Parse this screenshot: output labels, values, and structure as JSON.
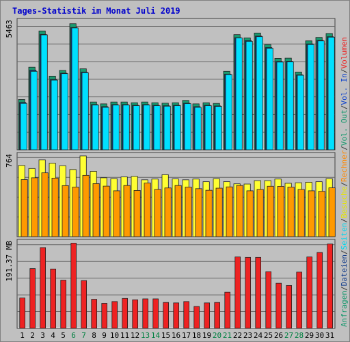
{
  "chart_data": {
    "type": "bar",
    "title": "Tages-Statistik im Monat Juli 2019",
    "days": [
      {
        "label": "1",
        "weekend": false
      },
      {
        "label": "2",
        "weekend": false
      },
      {
        "label": "3",
        "weekend": false
      },
      {
        "label": "4",
        "weekend": false
      },
      {
        "label": "5",
        "weekend": false
      },
      {
        "label": "6",
        "weekend": true
      },
      {
        "label": "7",
        "weekend": true
      },
      {
        "label": "8",
        "weekend": false
      },
      {
        "label": "9",
        "weekend": false
      },
      {
        "label": "10",
        "weekend": false
      },
      {
        "label": "11",
        "weekend": false
      },
      {
        "label": "12",
        "weekend": false
      },
      {
        "label": "13",
        "weekend": true
      },
      {
        "label": "14",
        "weekend": true
      },
      {
        "label": "15",
        "weekend": false
      },
      {
        "label": "16",
        "weekend": false
      },
      {
        "label": "17",
        "weekend": false
      },
      {
        "label": "18",
        "weekend": false
      },
      {
        "label": "19",
        "weekend": false
      },
      {
        "label": "20",
        "weekend": true
      },
      {
        "label": "21",
        "weekend": true
      },
      {
        "label": "22",
        "weekend": false
      },
      {
        "label": "23",
        "weekend": false
      },
      {
        "label": "24",
        "weekend": false
      },
      {
        "label": "25",
        "weekend": false
      },
      {
        "label": "26",
        "weekend": false
      },
      {
        "label": "27",
        "weekend": true
      },
      {
        "label": "28",
        "weekend": true
      },
      {
        "label": "29",
        "weekend": false
      },
      {
        "label": "30",
        "weekend": false
      },
      {
        "label": "31",
        "weekend": false
      }
    ],
    "panels": [
      {
        "id": "requests",
        "max_label": "5463",
        "max": 5463,
        "series": [
          {
            "name": "Anfragen",
            "color": "#1a9a70",
            "values": [
              2180,
              3580,
              5150,
              3190,
              3440,
              5463,
              3510,
              2070,
              1990,
              2070,
              2070,
              2040,
              2070,
              2040,
              2020,
              2040,
              2140,
              1990,
              2040,
              2010,
              3400,
              4990,
              4850,
              5060,
              4560,
              3960,
              3970,
              3370,
              4720,
              4870,
              5040
            ]
          },
          {
            "name": "Dateien",
            "color": "#0f3a8a",
            "values": [
              2050,
              3450,
              5000,
              3050,
              3320,
              5300,
              3370,
              1960,
              1870,
              1960,
              1960,
              1930,
              1960,
              1930,
              1910,
              1930,
              2020,
              1870,
              1930,
              1900,
              3280,
              4860,
              4730,
              4930,
              4430,
              3830,
              3840,
              3250,
              4590,
              4740,
              4900
            ]
          },
          {
            "name": "Seiten",
            "color": "#00e0ff",
            "values": [
              2010,
              3400,
              4980,
              3020,
              3300,
              5280,
              3340,
              1940,
              1840,
              1940,
              1940,
              1910,
              1940,
              1910,
              1890,
              1910,
              2000,
              1840,
              1910,
              1880,
              3260,
              4850,
              4700,
              4900,
              4400,
              3800,
              3810,
              3230,
              4560,
              4720,
              4880
            ]
          }
        ]
      },
      {
        "id": "visits",
        "max_label": "764",
        "max": 764,
        "series": [
          {
            "name": "Besuche",
            "color": "#ffff33",
            "values": [
              674,
              645,
              726,
              695,
              671,
              635,
              764,
              618,
              557,
              549,
              565,
              570,
              538,
              545,
              586,
              546,
              538,
              545,
              520,
              548,
              520,
              500,
              498,
              530,
              530,
              545,
              505,
              510,
              515,
              520,
              548
            ]
          },
          {
            "name": "Rechner",
            "color": "#ff9900",
            "values": [
              540,
              557,
              604,
              554,
              483,
              469,
              580,
              502,
              478,
              434,
              484,
              437,
              507,
              447,
              461,
              484,
              469,
              454,
              439,
              459,
              471,
              484,
              434,
              447,
              477,
              476,
              469,
              447,
              434,
              429,
              462
            ]
          }
        ]
      },
      {
        "id": "volume",
        "max_label": "191.37 MB",
        "max": 191.37,
        "series": [
          {
            "name": "Vol. Out",
            "color": "#aaaaaa",
            "values": []
          },
          {
            "name": "Vol. In",
            "color": "#1144cc",
            "values": []
          },
          {
            "name": "Volumen",
            "color": "#ee2222",
            "values": [
              68,
              134,
              181,
              133,
              108,
              191,
              107,
              65,
              56,
              60,
              67,
              64,
              66,
              66,
              58,
              57,
              60,
              49,
              57,
              58,
              81,
              160,
              159,
              159,
              127,
              101,
              96,
              126,
              160,
              170,
              189
            ]
          }
        ]
      }
    ],
    "right_legend": [
      {
        "text": "Anfragen",
        "color": "#1a9a70"
      },
      {
        "text": "/",
        "color": "#333333"
      },
      {
        "text": "Dateien",
        "color": "#0f3a8a"
      },
      {
        "text": "/",
        "color": "#333333"
      },
      {
        "text": "Seiten",
        "color": "#00d8f0"
      },
      {
        "text": "/",
        "color": "#333333"
      },
      {
        "text": "Besuche",
        "color": "#e6e600"
      },
      {
        "text": "/",
        "color": "#333333"
      },
      {
        "text": "Rechner",
        "color": "#ff8800"
      },
      {
        "text": "/",
        "color": "#333333"
      },
      {
        "text": "Vol. Out",
        "color": "#1a9a70"
      },
      {
        "text": "/",
        "color": "#333333"
      },
      {
        "text": "Vol. In",
        "color": "#1144cc"
      },
      {
        "text": "/",
        "color": "#333333"
      },
      {
        "text": "Volumen",
        "color": "#ee2222"
      }
    ],
    "colors": {
      "title": "#0000cc",
      "weekend_label": "#008040",
      "weekday_label": "#000000",
      "grid": "#666666"
    }
  }
}
